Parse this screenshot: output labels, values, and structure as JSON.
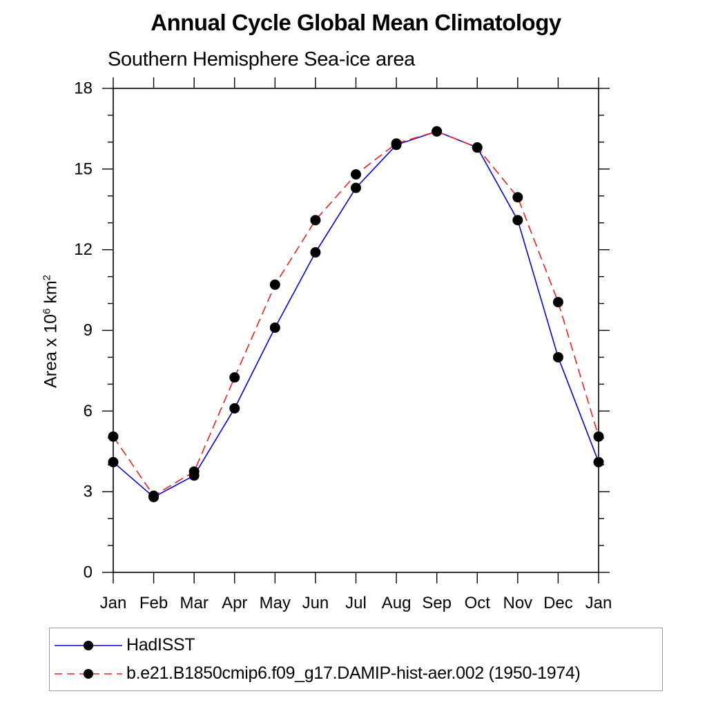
{
  "title": "Annual Cycle Global Mean Climatology",
  "subtitle": "Southern Hemisphere Sea-ice area",
  "chart_data": {
    "type": "line",
    "x": [
      "Jan",
      "Feb",
      "Mar",
      "Apr",
      "May",
      "Jun",
      "Jul",
      "Aug",
      "Sep",
      "Oct",
      "Nov",
      "Dec",
      "Jan"
    ],
    "xlabel": "",
    "ylabel": "Area x 10^6 km^2",
    "ylabel_parts": [
      "Area x 10",
      "6",
      " km",
      "2"
    ],
    "ylim": [
      0,
      18
    ],
    "yticks": [
      0,
      3,
      6,
      9,
      12,
      15,
      18
    ],
    "minor_tick_step": 1,
    "grid": false,
    "legend_position": "bottom",
    "marker": {
      "shape": "circle",
      "color": "#000000",
      "radius": 7.5
    },
    "series": [
      {
        "name": "HadISST",
        "color": "#0000ee",
        "dash": "solid",
        "values": [
          4.1,
          2.8,
          3.6,
          6.1,
          9.1,
          11.9,
          14.3,
          15.9,
          16.4,
          15.8,
          13.1,
          8.0,
          4.1
        ]
      },
      {
        "name": "b.e21.B1850cmip6.f09_g17.DAMIP-hist-aer.002 (1950-1974)",
        "color": "#ff1a1a",
        "dash": "dashed",
        "values": [
          5.05,
          2.85,
          3.75,
          7.25,
          10.7,
          13.1,
          14.8,
          15.95,
          16.4,
          15.8,
          13.95,
          10.05,
          5.05
        ]
      }
    ]
  }
}
